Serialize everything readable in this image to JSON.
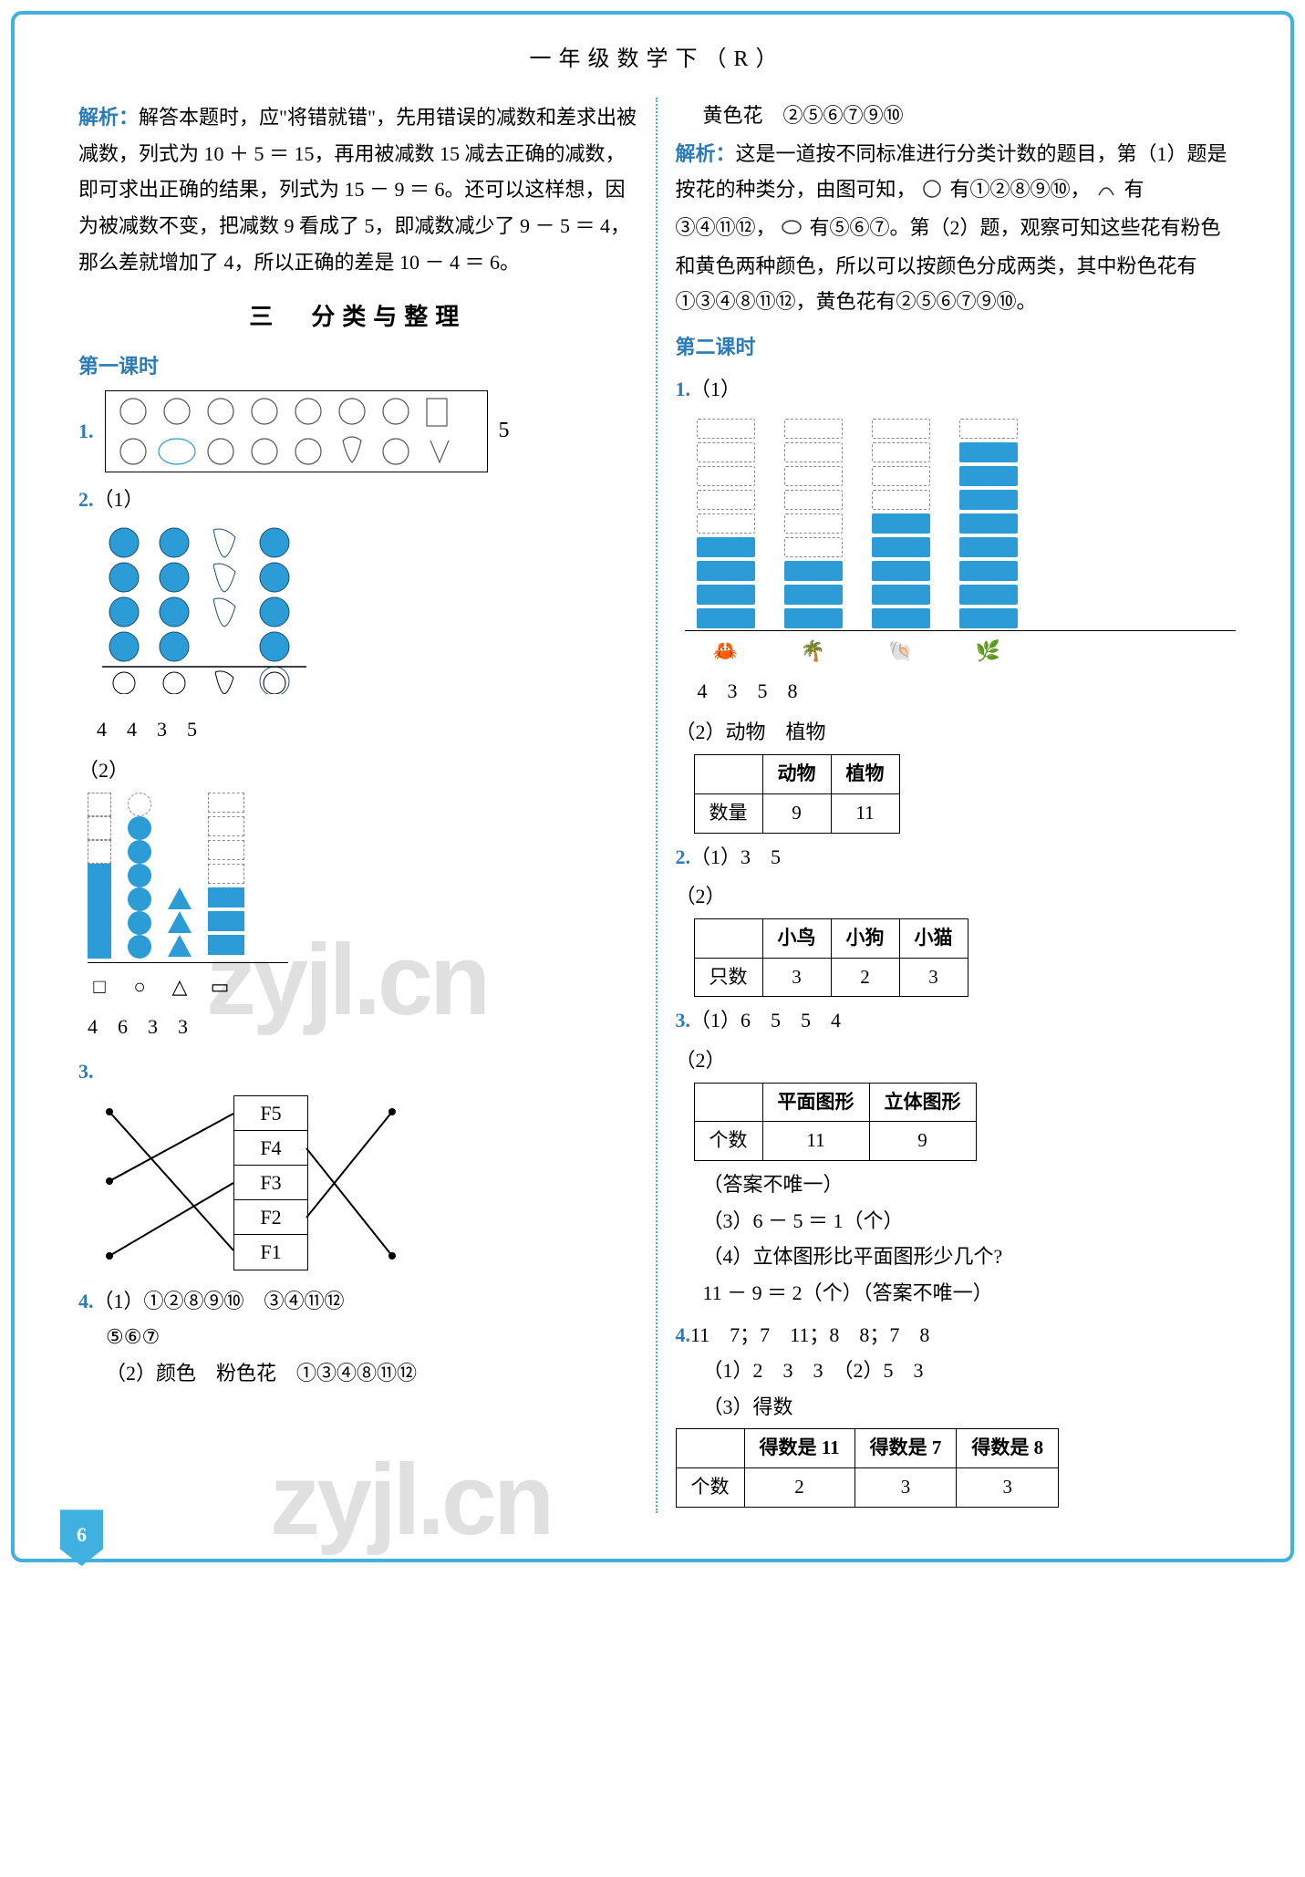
{
  "header": {
    "title": "一年级数学下（R）"
  },
  "page_number": "6",
  "left": {
    "jiexi_label": "解析：",
    "jiexi_text": "解答本题时，应\"将错就错\"，先用错误的减数和差求出被减数，列式为 10 ＋ 5 ＝ 15，再用被减数 15 减去正确的减数，即可求出正确的结果，列式为 15 － 9 ＝ 6。还可以这样想，因为被减数不变，把减数 9 看成了 5，即减数减少了 9 － 5 ＝ 4，那么差就增加了 4，所以正确的差是 10 － 4 ＝ 6。",
    "section_title": "三　分类与整理",
    "lesson1_label": "第一课时",
    "q1": {
      "num": "1.",
      "side_value": "5"
    },
    "q2_num": "2.",
    "q2_1_prefix": "（1）",
    "q2_1_answers": "4　4　3　5",
    "q2_2_prefix": "（2）",
    "shapes_capacity": 7,
    "shapes_cols": [
      {
        "type": "sq",
        "filled": 4
      },
      {
        "type": "ci",
        "filled": 6
      },
      {
        "type": "tr",
        "filled": 3
      },
      {
        "type": "re",
        "filled": 3
      }
    ],
    "shape_headers": [
      "□",
      "○",
      "△",
      "▭"
    ],
    "q2_2_answers": "4　6　3　3",
    "q3_num": "3.",
    "q3_cells": [
      "F5",
      "F4",
      "F3",
      "F2",
      "F1"
    ],
    "q4_num": "4.",
    "q4_1": "（1）①②⑧⑨⑩　③④⑪⑫",
    "q4_1b": "⑤⑥⑦",
    "q4_2": "（2）颜色　粉色花　①③④⑧⑪⑫"
  },
  "right": {
    "huang_line": "黄色花　②⑤⑥⑦⑨⑩",
    "jiexi_label": "解析：",
    "jiexi_text_a": "这是一道按不同标准进行分类计数的题目，第（1）题是按花的种类分，由图可知，",
    "jiexi_text_b": "有①②⑧⑨⑩，",
    "jiexi_text_c": "有③④⑪⑫，",
    "jiexi_text_d": "有⑤⑥⑦。第（2）题，观察可知这些花有粉色和黄色两种颜色，所以可以按颜色分成两类，其中粉色花有①③④⑧⑪⑫，黄色花有②⑤⑥⑦⑨⑩。",
    "lesson2_label": "第二课时",
    "q1_num": "1.",
    "q1_prefix": "（1）",
    "bar": {
      "capacity": 9,
      "columns": [
        {
          "icon": "蟹",
          "filled": 4
        },
        {
          "icon": "树",
          "filled": 3
        },
        {
          "icon": "贝",
          "filled": 5
        },
        {
          "icon": "草",
          "filled": 8
        }
      ]
    },
    "bar_answers": "4　3　5　8",
    "q1_2_prefix": "（2）",
    "q1_2_text": "动物　植物",
    "table1": {
      "headers": [
        "",
        "动物",
        "植物"
      ],
      "row_label": "数量",
      "row": [
        "9",
        "11"
      ]
    },
    "q2_num": "2.",
    "q2_1": "（1）3　5",
    "q2_2_prefix": "（2）",
    "table2": {
      "headers": [
        "",
        "小鸟",
        "小狗",
        "小猫"
      ],
      "row_label": "只数",
      "row": [
        "3",
        "2",
        "3"
      ]
    },
    "q3_num": "3.",
    "q3_1": "（1）6　5　5　4",
    "q3_2_prefix": "（2）",
    "table3": {
      "headers": [
        "",
        "平面图形",
        "立体图形"
      ],
      "row_label": "个数",
      "row": [
        "11",
        "9"
      ]
    },
    "q3_note": "（答案不唯一）",
    "q3_3": "（3）6 － 5 ＝ 1（个）",
    "q3_4a": "（4）立体图形比平面图形少几个?",
    "q3_4b": "11 － 9 ＝ 2（个）（答案不唯一）",
    "q4_num": "4.",
    "q4_line1": "11　7；7　11；8　8；7　8",
    "q4_line2": "（1）2　3　3　（2）5　3",
    "q4_line3": "（3）得数",
    "table4": {
      "headers": [
        "",
        "得数是 11",
        "得数是 7",
        "得数是 8"
      ],
      "row_label": "个数",
      "row": [
        "2",
        "3",
        "3"
      ]
    }
  },
  "colors": {
    "border": "#3fb0e0",
    "accent": "#2b7bb8",
    "bar_fill": "#2b9cd5",
    "wm": "rgba(0,0,0,0.12)"
  },
  "watermark": "zyjl.cn"
}
